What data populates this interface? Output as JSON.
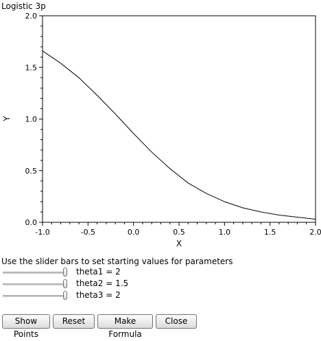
{
  "window": {
    "title": "Logistic 3p"
  },
  "chart_data": {
    "type": "line",
    "title": "",
    "xlabel": "X",
    "ylabel": "Y",
    "xlim": [
      -1.0,
      2.0
    ],
    "ylim": [
      0.0,
      2.0
    ],
    "x_ticks": [
      "-1.0",
      "-0.5",
      "0.0",
      "0.5",
      "1.0",
      "1.5",
      "2.0"
    ],
    "y_ticks": [
      "0.0",
      "0.5",
      "1.0",
      "1.5",
      "2.0"
    ],
    "series": [
      {
        "x": [
          -1.0,
          -0.8,
          -0.6,
          -0.4,
          -0.2,
          0.0,
          0.2,
          0.4,
          0.6,
          0.8,
          1.0,
          1.2,
          1.4,
          1.6,
          1.8,
          2.0
        ],
        "y": [
          1.66,
          1.54,
          1.4,
          1.23,
          1.05,
          0.86,
          0.68,
          0.52,
          0.38,
          0.28,
          0.2,
          0.14,
          0.1,
          0.07,
          0.05,
          0.03
        ]
      }
    ],
    "grid": false,
    "color": "#000000"
  },
  "controls": {
    "instructions": "Use the slider bars to set starting values for parameters",
    "sliders": [
      {
        "label": "theta1 = 2",
        "value": 2
      },
      {
        "label": "theta2 = 1.5",
        "value": 1.5
      },
      {
        "label": "theta3 = 2",
        "value": 2
      }
    ]
  },
  "buttons": {
    "show_points": "Show Points",
    "reset": "Reset",
    "make_formula": "Make Formula",
    "close": "Close"
  }
}
